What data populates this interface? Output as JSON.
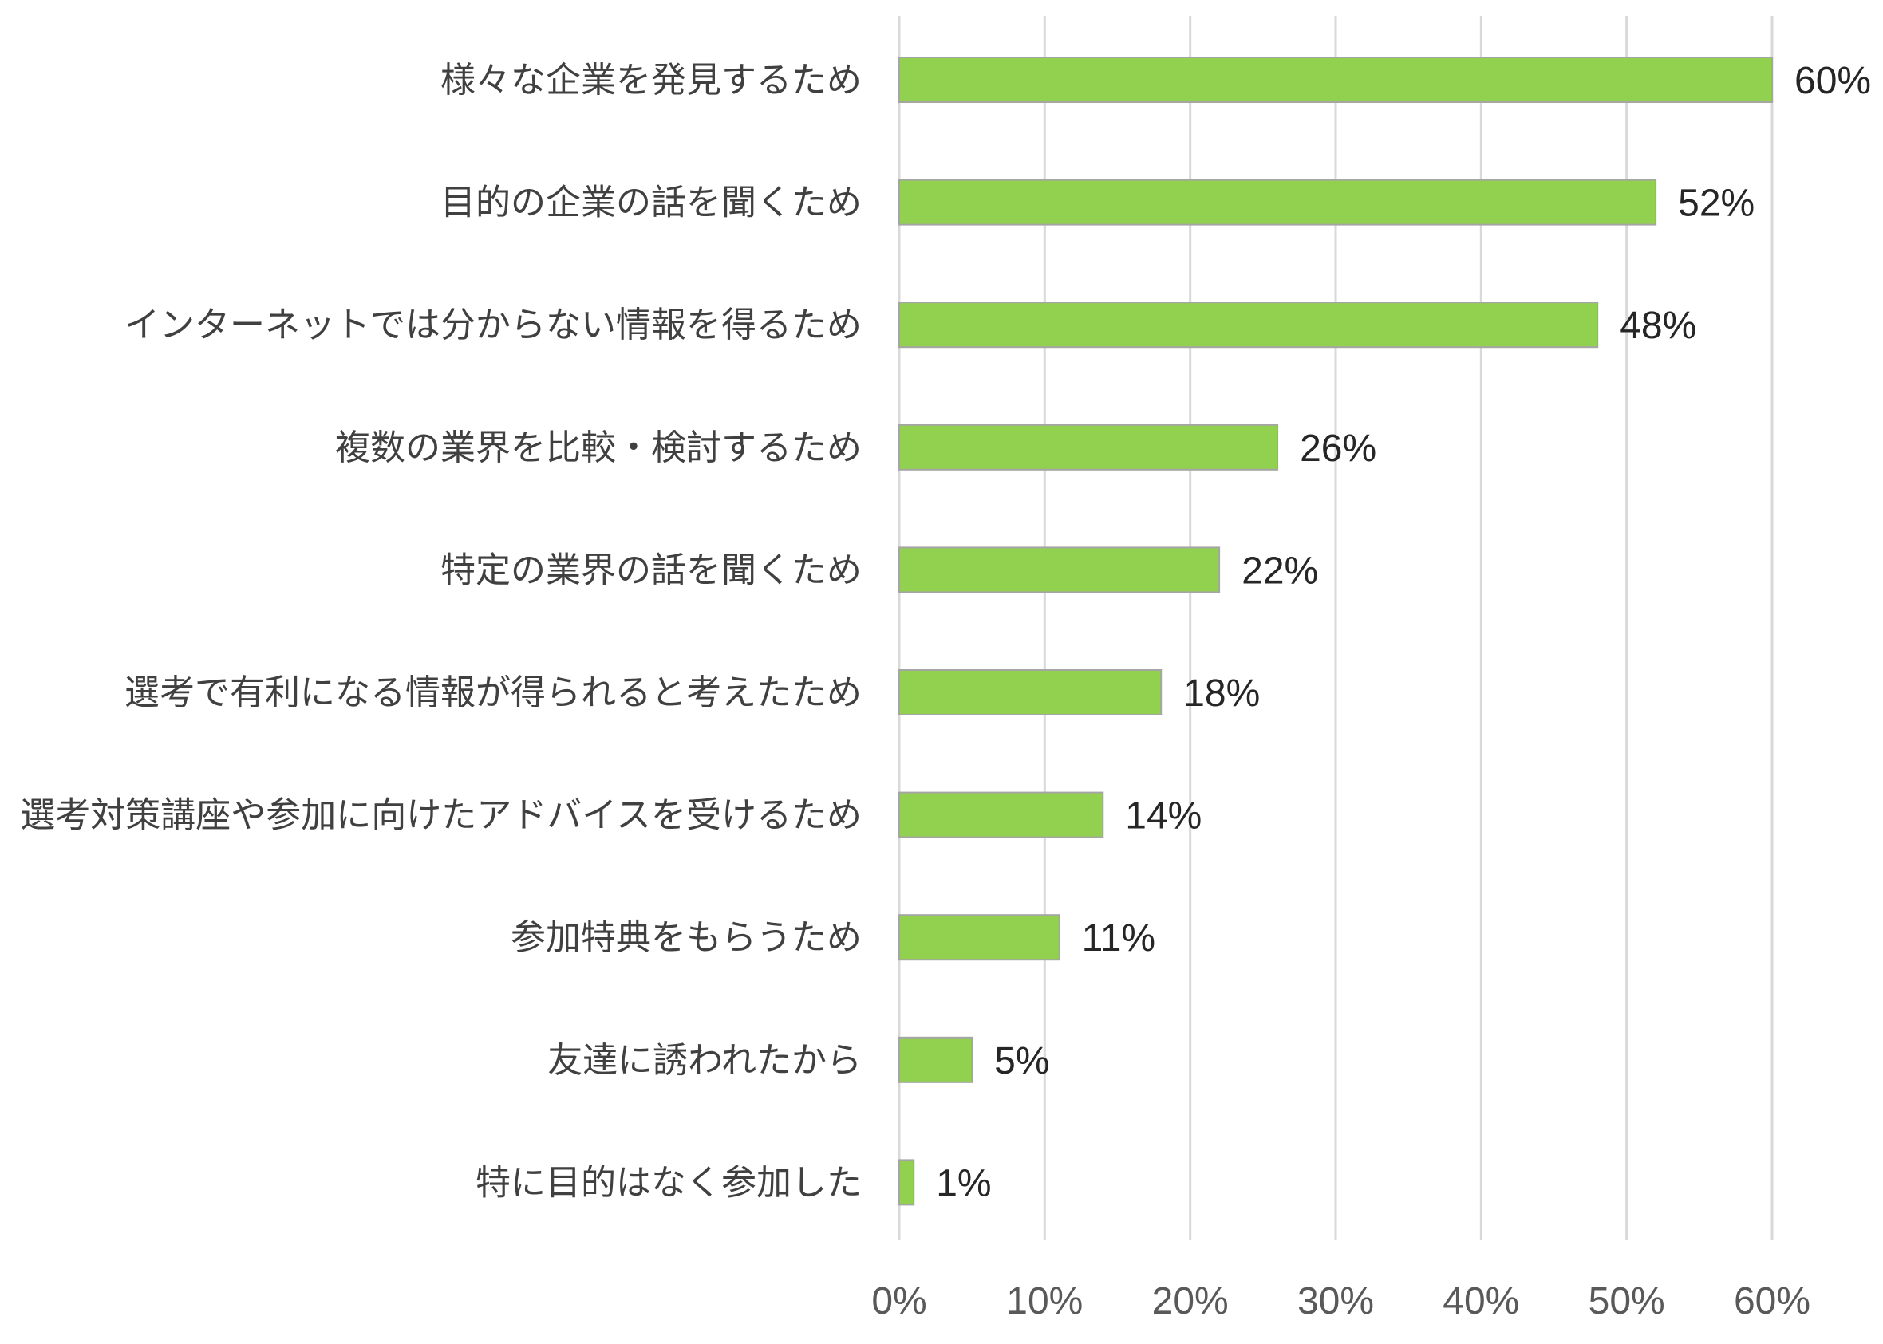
{
  "chart_data": {
    "type": "bar",
    "orientation": "horizontal",
    "categories": [
      "様々な企業を発見するため",
      "目的の企業の話を聞くため",
      "インターネットでは分からない情報を得るため",
      "複数の業界を比較・検討するため",
      "特定の業界の話を聞くため",
      "選考で有利になる情報が得られると考えたため",
      "選考対策講座や参加に向けたアドバイスを受けるため",
      "参加特典をもらうため",
      "友達に誘われたから",
      "特に目的はなく参加した"
    ],
    "values": [
      60,
      52,
      48,
      26,
      22,
      18,
      14,
      11,
      5,
      1
    ],
    "value_labels": [
      "60%",
      "52%",
      "48%",
      "26%",
      "22%",
      "18%",
      "14%",
      "11%",
      "5%",
      "1%"
    ],
    "xlim": [
      0,
      60
    ],
    "xticks": [
      0,
      10,
      20,
      30,
      40,
      50,
      60
    ],
    "xtick_labels": [
      "0%",
      "10%",
      "20%",
      "30%",
      "40%",
      "50%",
      "60%"
    ],
    "grid": "vertical",
    "legend": "none",
    "bar_color": "#92d050",
    "bar_edge_color": "#a5a5a5",
    "grid_color": "#d9d9d9"
  }
}
